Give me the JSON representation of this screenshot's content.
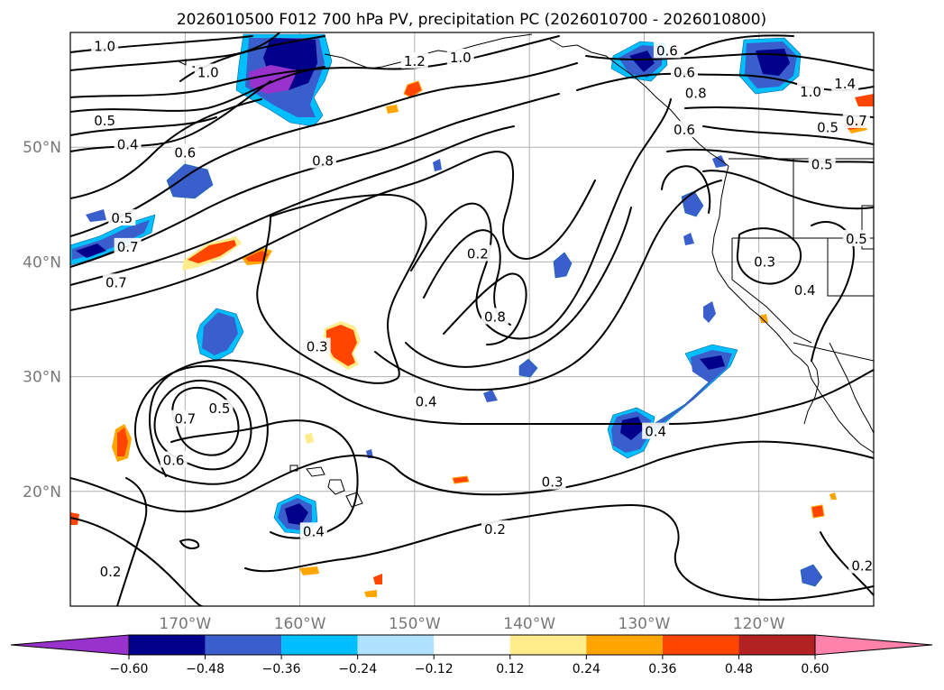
{
  "title": "2026010500 F012 700 hPa PV, precipitation PC (2026010700 - 2026010800)",
  "map": {
    "lon_range": [
      -180,
      -110
    ],
    "lat_range": [
      10,
      60
    ],
    "lon_ticks": [
      {
        "value": -170,
        "label": "170°W"
      },
      {
        "value": -160,
        "label": "160°W"
      },
      {
        "value": -150,
        "label": "150°W"
      },
      {
        "value": -140,
        "label": "140°W"
      },
      {
        "value": -130,
        "label": "130°W"
      },
      {
        "value": -120,
        "label": "120°W"
      }
    ],
    "lat_ticks": [
      {
        "value": 20,
        "label": "20°N"
      },
      {
        "value": 30,
        "label": "30°N"
      },
      {
        "value": 40,
        "label": "40°N"
      },
      {
        "value": 50,
        "label": "50°N"
      }
    ],
    "grid": true
  },
  "colorbar": {
    "extend": "both",
    "levels": [
      -0.6,
      -0.48,
      -0.36,
      -0.24,
      -0.12,
      0.12,
      0.24,
      0.36,
      0.48,
      0.6
    ],
    "labels": [
      "−0.60",
      "−0.48",
      "−0.36",
      "−0.24",
      "−0.12",
      "0.12",
      "0.24",
      "0.36",
      "0.48",
      "0.60"
    ],
    "colors": [
      "#9932cc",
      "#00008b",
      "#3a5fcd",
      "#00bfff",
      "#b0e2ff",
      "#ffffff",
      "#ffec8b",
      "#ffa500",
      "#ff4500",
      "#b22222",
      "#ff82ab"
    ]
  },
  "contour_labels": [
    {
      "text": "1.0",
      "lon": -177,
      "lat": 58.8
    },
    {
      "text": "1.0",
      "lon": -168,
      "lat": 56.5
    },
    {
      "text": "1.2",
      "lon": -150,
      "lat": 57.5
    },
    {
      "text": "1.0",
      "lon": -146,
      "lat": 57.8
    },
    {
      "text": "0.6",
      "lon": -128,
      "lat": 58.4
    },
    {
      "text": "0.6",
      "lon": -126.5,
      "lat": 56.5
    },
    {
      "text": "0.8",
      "lon": -125.5,
      "lat": 54.7
    },
    {
      "text": "1.4",
      "lon": -112.5,
      "lat": 55.5
    },
    {
      "text": "1.0",
      "lon": -115.5,
      "lat": 54.8
    },
    {
      "text": "0.5",
      "lon": -114,
      "lat": 51.7
    },
    {
      "text": "0.7",
      "lon": -111.5,
      "lat": 52.3
    },
    {
      "text": "0.6",
      "lon": -126.5,
      "lat": 51.5
    },
    {
      "text": "0.5",
      "lon": -177,
      "lat": 52.3
    },
    {
      "text": "0.4",
      "lon": -175,
      "lat": 50.2
    },
    {
      "text": "0.6",
      "lon": -170,
      "lat": 49.5
    },
    {
      "text": "0.8",
      "lon": -158,
      "lat": 48.8
    },
    {
      "text": "0.5",
      "lon": -175.5,
      "lat": 43.8
    },
    {
      "text": "0.7",
      "lon": -175,
      "lat": 41.3
    },
    {
      "text": "0.7",
      "lon": -176,
      "lat": 38.2
    },
    {
      "text": "0.2",
      "lon": -144.5,
      "lat": 40.7
    },
    {
      "text": "0.8",
      "lon": -143,
      "lat": 35.2
    },
    {
      "text": "0.3",
      "lon": -158.5,
      "lat": 32.6
    },
    {
      "text": "0.4",
      "lon": -149,
      "lat": 27.8
    },
    {
      "text": "0.7",
      "lon": -170,
      "lat": 26.3
    },
    {
      "text": "0.5",
      "lon": -167,
      "lat": 27.2
    },
    {
      "text": "0.6",
      "lon": -171,
      "lat": 22.7
    },
    {
      "text": "0.4",
      "lon": -129,
      "lat": 25.2
    },
    {
      "text": "0.3",
      "lon": -138,
      "lat": 20.8
    },
    {
      "text": "0.2",
      "lon": -143,
      "lat": 16.7
    },
    {
      "text": "0.4",
      "lon": -158.8,
      "lat": 16.5
    },
    {
      "text": "0.2",
      "lon": -176.5,
      "lat": 13.0
    },
    {
      "text": "0.2",
      "lon": -111,
      "lat": 13.5
    },
    {
      "text": "0.3",
      "lon": -119.5,
      "lat": 40.0
    },
    {
      "text": "0.4",
      "lon": -116,
      "lat": 37.5
    },
    {
      "text": "0.5",
      "lon": -111.5,
      "lat": 42.0
    },
    {
      "text": "0.5",
      "lon": -114.5,
      "lat": 48.5
    }
  ]
}
